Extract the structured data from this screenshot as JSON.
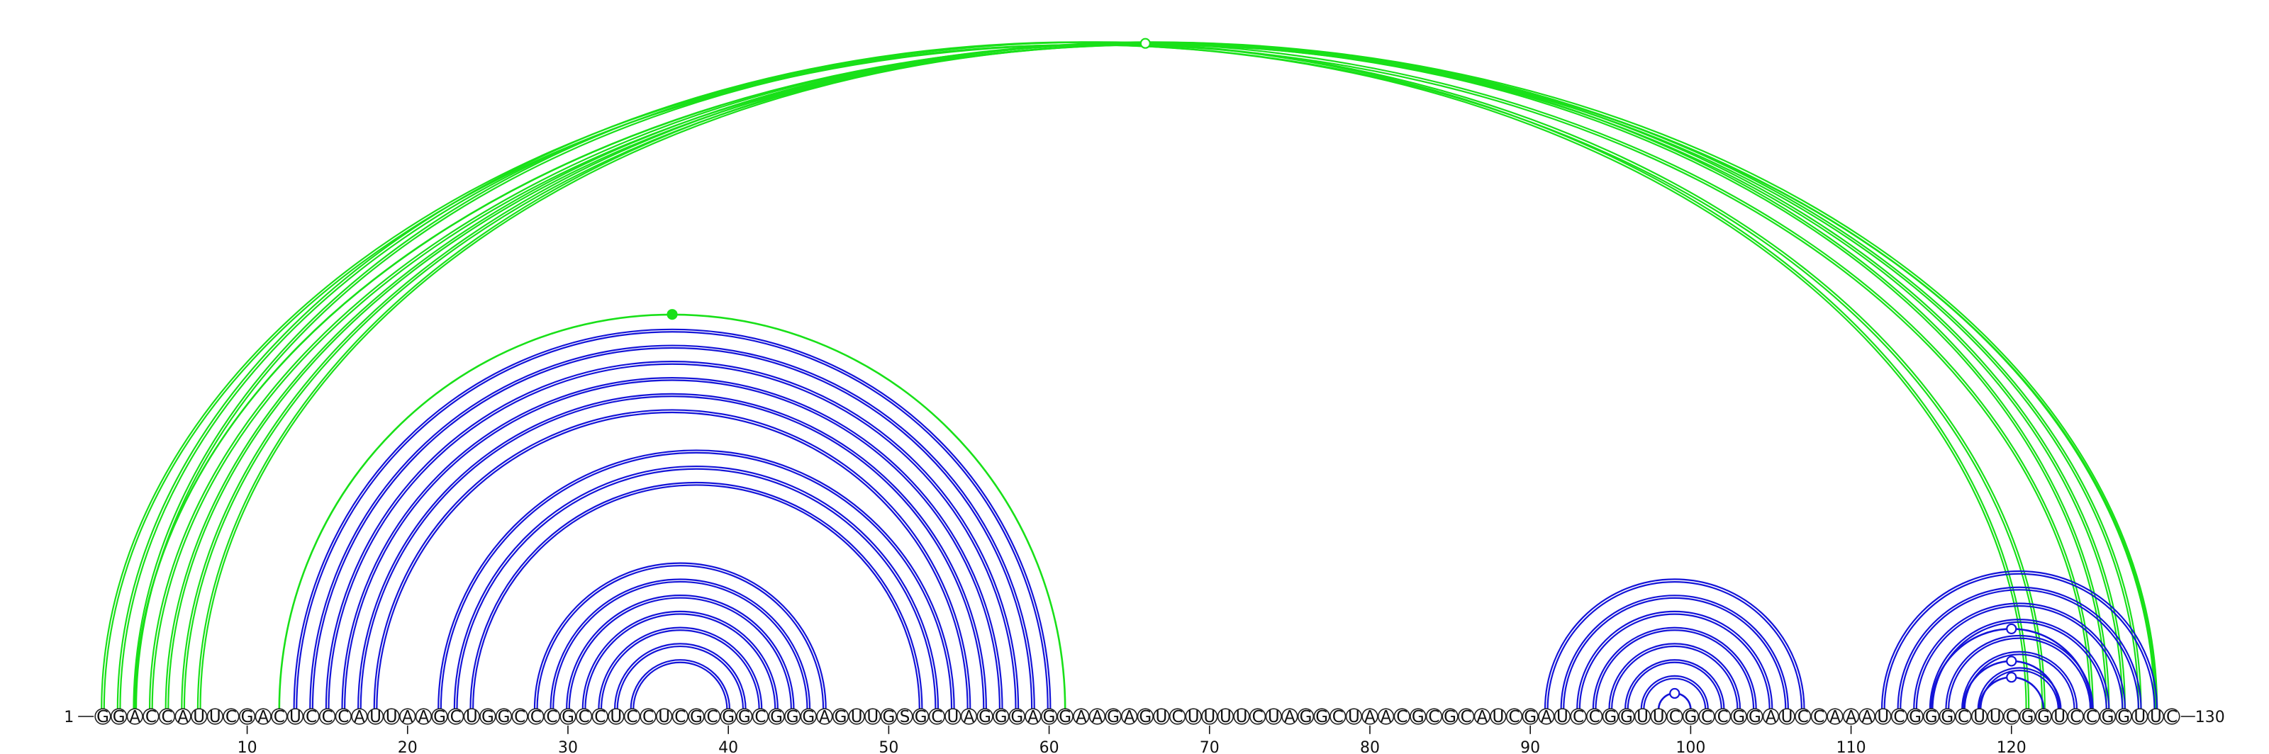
{
  "diagram": {
    "type": "rna-arc-diagram",
    "sequence": "GGACCAUUCGACUCCCAUUAAGCUGGCCCGCCUCCUCGCGGCGGGAGUUGSGCUAGGGAGGAAGAGUCUUUUCUAGGCUAACGCGCAUCGAUCCGGUUCGCCGGAUCCAAAUCGGGCUUCGGUCCGGUUC",
    "start_label": "1",
    "end_label": "130",
    "ticks": [
      10,
      20,
      30,
      40,
      50,
      60,
      70,
      80,
      90,
      100,
      110,
      120
    ],
    "colors": {
      "nested": "#1414d8",
      "crossing": "#19e019",
      "outline": "#222222"
    },
    "arcs": [
      {
        "i": 1,
        "j": 125,
        "color": "crossing",
        "kind": "double"
      },
      {
        "i": 2,
        "j": 122,
        "color": "crossing",
        "kind": "double"
      },
      {
        "i": 3,
        "j": 121,
        "color": "crossing",
        "kind": "double"
      },
      {
        "i": 4,
        "j": 129,
        "color": "crossing",
        "kind": "double"
      },
      {
        "i": 5,
        "j": 128,
        "color": "crossing",
        "kind": "double"
      },
      {
        "i": 6,
        "j": 127,
        "color": "crossing",
        "kind": "double"
      },
      {
        "i": 7,
        "j": 126,
        "color": "crossing",
        "kind": "double"
      },
      {
        "i": 3,
        "j": 129,
        "color": "crossing",
        "kind": "single",
        "marker": "open"
      },
      {
        "i": 12,
        "j": 61,
        "color": "crossing",
        "kind": "single",
        "marker": "filled"
      },
      {
        "i": 13,
        "j": 60,
        "color": "nested",
        "kind": "double"
      },
      {
        "i": 14,
        "j": 59,
        "color": "nested",
        "kind": "double"
      },
      {
        "i": 15,
        "j": 58,
        "color": "nested",
        "kind": "double"
      },
      {
        "i": 16,
        "j": 57,
        "color": "nested",
        "kind": "double"
      },
      {
        "i": 17,
        "j": 56,
        "color": "nested",
        "kind": "double"
      },
      {
        "i": 18,
        "j": 55,
        "color": "nested",
        "kind": "double"
      },
      {
        "i": 22,
        "j": 54,
        "color": "nested",
        "kind": "double"
      },
      {
        "i": 23,
        "j": 53,
        "color": "nested",
        "kind": "double"
      },
      {
        "i": 24,
        "j": 52,
        "color": "nested",
        "kind": "double"
      },
      {
        "i": 28,
        "j": 46,
        "color": "nested",
        "kind": "double"
      },
      {
        "i": 29,
        "j": 45,
        "color": "nested",
        "kind": "double"
      },
      {
        "i": 30,
        "j": 44,
        "color": "nested",
        "kind": "double"
      },
      {
        "i": 31,
        "j": 43,
        "color": "nested",
        "kind": "double"
      },
      {
        "i": 32,
        "j": 42,
        "color": "nested",
        "kind": "double"
      },
      {
        "i": 33,
        "j": 41,
        "color": "nested",
        "kind": "double"
      },
      {
        "i": 34,
        "j": 40,
        "color": "nested",
        "kind": "double"
      },
      {
        "i": 91,
        "j": 107,
        "color": "nested",
        "kind": "double"
      },
      {
        "i": 92,
        "j": 106,
        "color": "nested",
        "kind": "double"
      },
      {
        "i": 93,
        "j": 105,
        "color": "nested",
        "kind": "double"
      },
      {
        "i": 94,
        "j": 104,
        "color": "nested",
        "kind": "double"
      },
      {
        "i": 95,
        "j": 103,
        "color": "nested",
        "kind": "double"
      },
      {
        "i": 96,
        "j": 102,
        "color": "nested",
        "kind": "double"
      },
      {
        "i": 97,
        "j": 101,
        "color": "nested",
        "kind": "double"
      },
      {
        "i": 98,
        "j": 100,
        "color": "nested",
        "kind": "single",
        "marker": "open"
      },
      {
        "i": 112,
        "j": 129,
        "color": "nested",
        "kind": "double"
      },
      {
        "i": 113,
        "j": 128,
        "color": "nested",
        "kind": "double"
      },
      {
        "i": 114,
        "j": 127,
        "color": "nested",
        "kind": "double"
      },
      {
        "i": 115,
        "j": 126,
        "color": "nested",
        "kind": "double"
      },
      {
        "i": 116,
        "j": 125,
        "color": "nested",
        "kind": "double"
      },
      {
        "i": 117,
        "j": 124,
        "color": "nested",
        "kind": "double"
      },
      {
        "i": 118,
        "j": 123,
        "color": "nested",
        "kind": "double"
      },
      {
        "i": 115,
        "j": 125,
        "color": "nested",
        "kind": "single",
        "marker": "open"
      },
      {
        "i": 117,
        "j": 123,
        "color": "nested",
        "kind": "single",
        "marker": "open"
      },
      {
        "i": 118,
        "j": 122,
        "color": "nested",
        "kind": "single",
        "marker": "open"
      }
    ]
  }
}
